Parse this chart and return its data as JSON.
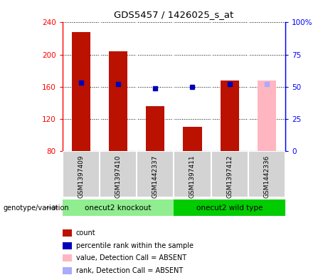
{
  "title": "GDS5457 / 1426025_s_at",
  "samples": [
    "GSM1397409",
    "GSM1397410",
    "GSM1442337",
    "GSM1397411",
    "GSM1397412",
    "GSM1442336"
  ],
  "counts": [
    228,
    204,
    136,
    110,
    168,
    null
  ],
  "percentile_ranks": [
    53,
    52,
    49,
    50,
    52,
    null
  ],
  "absent_value": [
    null,
    null,
    null,
    null,
    null,
    168
  ],
  "absent_rank": [
    null,
    null,
    null,
    null,
    null,
    52
  ],
  "groups": [
    {
      "label": "onecut2 knockout",
      "samples": [
        0,
        1,
        2
      ],
      "color": "#90ee90"
    },
    {
      "label": "onecut2 wild type",
      "samples": [
        3,
        4,
        5
      ],
      "color": "#00cc00"
    }
  ],
  "ylim_left": [
    80,
    240
  ],
  "ylim_right": [
    0,
    100
  ],
  "yticks_left": [
    80,
    120,
    160,
    200,
    240
  ],
  "yticks_right": [
    0,
    25,
    50,
    75,
    100
  ],
  "yticklabels_right": [
    "0",
    "25",
    "50",
    "75",
    "100%"
  ],
  "bar_color_red": "#bb1100",
  "bar_color_absent": "#ffb6c1",
  "dot_color_blue": "#0000bb",
  "dot_color_absent": "#aaaaff",
  "background_plot": "#ffffff",
  "background_sample": "#d3d3d3",
  "legend_items": [
    {
      "color": "#bb1100",
      "label": "count"
    },
    {
      "color": "#0000bb",
      "label": "percentile rank within the sample"
    },
    {
      "color": "#ffb6c1",
      "label": "value, Detection Call = ABSENT"
    },
    {
      "color": "#aaaaff",
      "label": "rank, Detection Call = ABSENT"
    }
  ],
  "genotype_label": "genotype/variation"
}
